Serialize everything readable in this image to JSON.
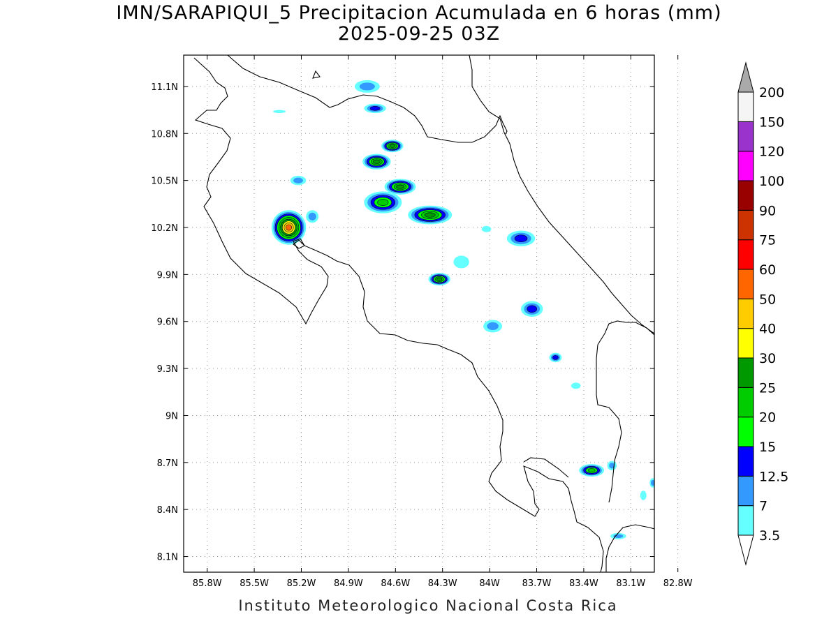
{
  "title": "IMN/SARAPIQUI_5 Precipitacion Acumulada en 6 horas (mm)",
  "subtitle": "2025-09-25 03Z",
  "credit": "Instituto Meteorologico Nacional Costa Rica",
  "map": {
    "lon_range": [
      -85.95,
      -82.95
    ],
    "lat_range": [
      8.0,
      11.3
    ],
    "lon_ticks": [
      "85.8W",
      "85.5W",
      "85.2W",
      "84.9W",
      "84.6W",
      "84.3W",
      "84W",
      "83.7W",
      "83.4W",
      "83.1W",
      "82.8W"
    ],
    "lon_tick_values": [
      -85.8,
      -85.5,
      -85.2,
      -84.9,
      -84.6,
      -84.3,
      -84.0,
      -83.7,
      -83.4,
      -83.1,
      -82.8
    ],
    "lat_ticks": [
      "11.1N",
      "10.8N",
      "10.5N",
      "10.2N",
      "9.9N",
      "9.6N",
      "9.3N",
      "9N",
      "8.7N",
      "8.4N",
      "8.1N"
    ],
    "lat_tick_values": [
      11.1,
      10.8,
      10.5,
      10.2,
      9.9,
      9.6,
      9.3,
      9.0,
      8.7,
      8.4,
      8.1
    ],
    "grid": "dotted"
  },
  "legend": {
    "labels": [
      "3.5",
      "7",
      "12.5",
      "15",
      "20",
      "25",
      "30",
      "40",
      "50",
      "60",
      "75",
      "90",
      "100",
      "120",
      "150",
      "200"
    ],
    "colors": [
      "#66ffff",
      "#3399ff",
      "#0000ff",
      "#00ff00",
      "#00cc00",
      "#009900",
      "#ffff00",
      "#ffcc00",
      "#ff6600",
      "#ff0000",
      "#cc3300",
      "#990000",
      "#ff00ff",
      "#9933cc",
      "#f5f5f5"
    ],
    "over_color": "#aaaaaa",
    "under_color": "#ffffff"
  },
  "chart_data": {
    "type": "heatmap",
    "title": "IMN/SARAPIQUI_5 Precipitacion Acumulada en 6 horas (mm)",
    "units": "mm",
    "cells": [
      {
        "lon": -85.28,
        "lat": 10.2,
        "peak": 50,
        "rx": 0.11,
        "ry": 0.11
      },
      {
        "lon": -85.13,
        "lat": 10.27,
        "peak": 7,
        "rx": 0.04,
        "ry": 0.04
      },
      {
        "lon": -85.22,
        "lat": 10.5,
        "peak": 7,
        "rx": 0.05,
        "ry": 0.03
      },
      {
        "lon": -85.34,
        "lat": 10.94,
        "peak": 3.5,
        "rx": 0.04,
        "ry": 0.01
      },
      {
        "lon": -84.78,
        "lat": 11.1,
        "peak": 7,
        "rx": 0.08,
        "ry": 0.04
      },
      {
        "lon": -84.73,
        "lat": 10.96,
        "peak": 12.5,
        "rx": 0.07,
        "ry": 0.03
      },
      {
        "lon": -84.62,
        "lat": 10.72,
        "peak": 25,
        "rx": 0.07,
        "ry": 0.04
      },
      {
        "lon": -84.72,
        "lat": 10.62,
        "peak": 25,
        "rx": 0.09,
        "ry": 0.05
      },
      {
        "lon": -84.57,
        "lat": 10.46,
        "peak": 25,
        "rx": 0.1,
        "ry": 0.05
      },
      {
        "lon": -84.68,
        "lat": 10.36,
        "peak": 20,
        "rx": 0.12,
        "ry": 0.07
      },
      {
        "lon": -84.38,
        "lat": 10.28,
        "peak": 25,
        "rx": 0.14,
        "ry": 0.06
      },
      {
        "lon": -84.32,
        "lat": 9.87,
        "peak": 25,
        "rx": 0.07,
        "ry": 0.04
      },
      {
        "lon": -84.02,
        "lat": 10.19,
        "peak": 3.5,
        "rx": 0.03,
        "ry": 0.02
      },
      {
        "lon": -83.8,
        "lat": 10.13,
        "peak": 12.5,
        "rx": 0.09,
        "ry": 0.05
      },
      {
        "lon": -84.18,
        "lat": 9.98,
        "peak": 3.5,
        "rx": 0.05,
        "ry": 0.04
      },
      {
        "lon": -83.73,
        "lat": 9.68,
        "peak": 12.5,
        "rx": 0.07,
        "ry": 0.05
      },
      {
        "lon": -83.98,
        "lat": 9.57,
        "peak": 7,
        "rx": 0.06,
        "ry": 0.04
      },
      {
        "lon": -83.58,
        "lat": 9.37,
        "peak": 12.5,
        "rx": 0.04,
        "ry": 0.03
      },
      {
        "lon": -83.45,
        "lat": 9.19,
        "peak": 3.5,
        "rx": 0.03,
        "ry": 0.02
      },
      {
        "lon": -83.35,
        "lat": 8.65,
        "peak": 20,
        "rx": 0.08,
        "ry": 0.04
      },
      {
        "lon": -83.22,
        "lat": 8.68,
        "peak": 7,
        "rx": 0.03,
        "ry": 0.03
      },
      {
        "lon": -83.18,
        "lat": 8.23,
        "peak": 7,
        "rx": 0.05,
        "ry": 0.02
      },
      {
        "lon": -83.02,
        "lat": 8.49,
        "peak": 3.5,
        "rx": 0.02,
        "ry": 0.03
      },
      {
        "lon": -82.96,
        "lat": 8.57,
        "peak": 7,
        "rx": 0.02,
        "ry": 0.03
      }
    ]
  }
}
